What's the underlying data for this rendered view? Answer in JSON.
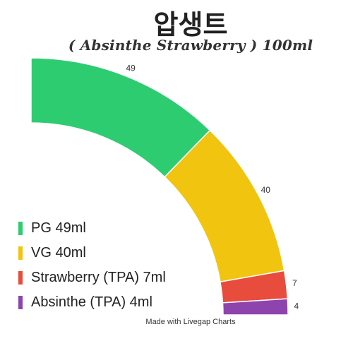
{
  "header": {
    "title": "압생트",
    "subtitle": "( Absinthe Strawberry ) 100ml"
  },
  "footer": {
    "credit": "Made with Livegap Charts"
  },
  "legend": {
    "items": [
      {
        "label": "PG 49ml"
      },
      {
        "label": "VG 40ml"
      },
      {
        "label": "Strawberry (TPA) 7ml"
      },
      {
        "label": "Absinthe (TPA) 4ml"
      }
    ]
  },
  "chart_data": {
    "type": "pie",
    "subtype": "doughnut-quarter",
    "title": "압생트",
    "subtitle": "( Absinthe Strawberry ) 100ml",
    "legend_position": "bottom-left",
    "series": [
      {
        "name": "PG 49ml",
        "value": 49,
        "color": "#2ecc71"
      },
      {
        "name": "VG 40ml",
        "value": 40,
        "color": "#f1c40f"
      },
      {
        "name": "Strawberry (TPA) 7ml",
        "value": 7,
        "color": "#e74c3c"
      },
      {
        "name": "Absinthe (TPA) 4ml",
        "value": 4,
        "color": "#8e44ad"
      }
    ],
    "data_labels": [
      "49",
      "40",
      "7",
      "4"
    ]
  }
}
